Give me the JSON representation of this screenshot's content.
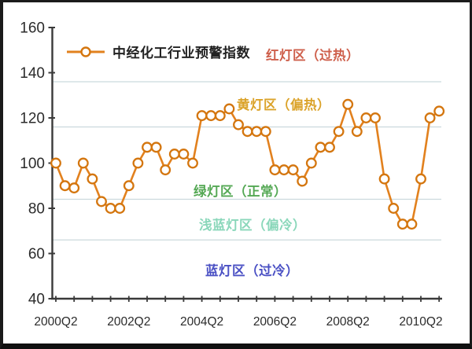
{
  "legend": {
    "label": "中经化工行业预警指数"
  },
  "zones": [
    {
      "label": "红灯区（过热）",
      "color": "#CE5F4B"
    },
    {
      "label": "黄灯区（偏热）",
      "color": "#DBA32A"
    },
    {
      "label": "绿灯区（正常）",
      "color": "#54A854"
    },
    {
      "label": "浅蓝灯区（偏冷）",
      "color": "#8AD7BA"
    },
    {
      "label": "蓝灯区（过冷）",
      "color": "#4A50C4"
    }
  ],
  "chart_data": {
    "type": "line",
    "title": "",
    "series": [
      {
        "name": "中经化工行业预警指数",
        "color": "#E2811E",
        "marker": "circle-white",
        "marker_stroke": "#D4760F",
        "values": [
          100,
          90,
          89,
          100,
          93,
          83,
          80,
          80,
          90,
          100,
          107,
          107,
          97,
          104,
          104,
          100,
          121,
          121,
          121,
          124,
          117,
          114,
          114,
          114,
          97,
          97,
          97,
          92,
          100,
          107,
          107,
          114,
          126,
          114,
          120,
          120,
          93,
          80,
          73,
          73,
          93,
          120,
          123
        ]
      }
    ],
    "x": [
      "2000Q2",
      "2000Q3",
      "2000Q4",
      "2001Q1",
      "2001Q2",
      "2001Q3",
      "2001Q4",
      "2002Q1",
      "2002Q2",
      "2002Q3",
      "2002Q4",
      "2003Q1",
      "2003Q2",
      "2003Q3",
      "2003Q4",
      "2004Q1",
      "2004Q2",
      "2004Q3",
      "2004Q4",
      "2005Q1",
      "2005Q2",
      "2005Q3",
      "2005Q4",
      "2006Q1",
      "2006Q2",
      "2006Q3",
      "2006Q4",
      "2007Q1",
      "2007Q2",
      "2007Q3",
      "2007Q4",
      "2008Q1",
      "2008Q2",
      "2008Q3",
      "2008Q4",
      "2009Q1",
      "2009Q2",
      "2009Q3",
      "2009Q4",
      "2010Q1",
      "2010Q2",
      "2010Q3",
      "2010Q4"
    ],
    "x_axis_tick_labels": [
      "2000Q2",
      "2002Q2",
      "2004Q2",
      "2006Q2",
      "2008Q2",
      "2010Q2"
    ],
    "x_axis_tick_positions": [
      0,
      8,
      16,
      24,
      32,
      40
    ],
    "ylim": [
      40,
      160
    ],
    "yticks": [
      40,
      60,
      80,
      100,
      120,
      140,
      160
    ],
    "zone_boundaries": [
      136,
      116,
      84,
      66
    ],
    "grid": true,
    "gridline_color": "#CBD9DD",
    "axis_color": "#3a3a3a",
    "legend_position": "top-left-inside"
  }
}
